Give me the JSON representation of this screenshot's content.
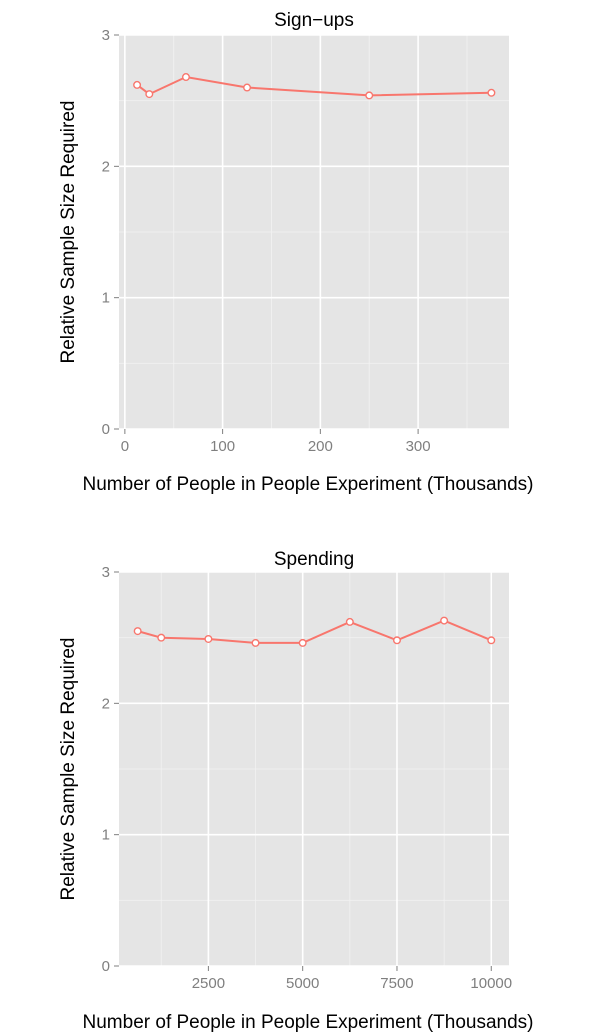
{
  "chart_data": [
    {
      "type": "line",
      "title": "Sign−ups",
      "xlabel": "Number of People in People Experiment (Thousands)",
      "ylabel": "Relative Sample Size Required",
      "xlim": [
        -6,
        393
      ],
      "ylim": [
        0,
        3
      ],
      "x_ticks": [
        0,
        100,
        200,
        300
      ],
      "x_minor": [
        50,
        150,
        250,
        350
      ],
      "y_ticks": [
        0,
        1,
        2,
        3
      ],
      "grid": true,
      "series": [
        {
          "color": "#f8766d",
          "x": [
            12.5,
            25,
            62.5,
            125,
            250,
            375
          ],
          "values": [
            2.62,
            2.55,
            2.68,
            2.6,
            2.54,
            2.56
          ]
        }
      ]
    },
    {
      "type": "line",
      "title": "Spending",
      "xlabel": "Number of People in People Experiment (Thousands)",
      "ylabel": "Relative Sample Size Required",
      "xlim": [
        130,
        10470
      ],
      "ylim": [
        0,
        3
      ],
      "x_ticks": [
        2500,
        5000,
        7500,
        10000
      ],
      "x_minor": [
        1250,
        3750,
        6250,
        8750
      ],
      "y_ticks": [
        0,
        1,
        2,
        3
      ],
      "grid": true,
      "series": [
        {
          "color": "#f8766d",
          "x": [
            625,
            1250,
            2500,
            3750,
            5000,
            6250,
            7500,
            8750,
            10000
          ],
          "values": [
            2.55,
            2.5,
            2.49,
            2.46,
            2.46,
            2.62,
            2.48,
            2.63,
            2.48
          ]
        }
      ]
    }
  ]
}
